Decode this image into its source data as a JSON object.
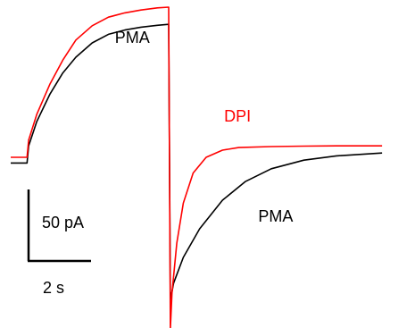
{
  "chart_data": {
    "type": "line",
    "title": "",
    "xlabel": "",
    "ylabel": "",
    "grid": false,
    "legend": "inline labels next to traces",
    "units": {
      "time": "s",
      "current": "pA"
    },
    "scale_bar": {
      "current_label": "50 pA",
      "time_label": "2 s",
      "current_value": 50,
      "time_value": 2
    },
    "xlim": [
      0,
      11.5
    ],
    "ylim": [
      -120,
      115
    ],
    "series": [
      {
        "name": "DPI",
        "color": "#ff0000",
        "points": [
          [
            0.0,
            0
          ],
          [
            0.35,
            0
          ],
          [
            0.5,
            0
          ],
          [
            0.55,
            12
          ],
          [
            0.8,
            30
          ],
          [
            1.2,
            51
          ],
          [
            1.6,
            68
          ],
          [
            2.0,
            82
          ],
          [
            2.5,
            92
          ],
          [
            3.0,
            98
          ],
          [
            3.5,
            101
          ],
          [
            4.0,
            103
          ],
          [
            4.5,
            104.5
          ],
          [
            4.85,
            105
          ],
          [
            4.9,
            -120
          ],
          [
            4.95,
            -95
          ],
          [
            5.1,
            -60
          ],
          [
            5.3,
            -32
          ],
          [
            5.6,
            -11
          ],
          [
            6.0,
            0
          ],
          [
            6.5,
            5
          ],
          [
            7.0,
            6.8
          ],
          [
            8.0,
            7.5
          ],
          [
            9.0,
            7.8
          ],
          [
            10.0,
            8.0
          ],
          [
            11.4,
            8.0
          ]
        ]
      },
      {
        "name": "PMA",
        "color": "#000000",
        "points": [
          [
            0.0,
            -4
          ],
          [
            0.5,
            -4
          ],
          [
            0.55,
            8
          ],
          [
            0.8,
            25
          ],
          [
            1.2,
            44
          ],
          [
            1.6,
            59
          ],
          [
            2.0,
            70
          ],
          [
            2.5,
            80
          ],
          [
            3.0,
            86
          ],
          [
            3.5,
            89
          ],
          [
            4.0,
            91
          ],
          [
            4.5,
            92.3
          ],
          [
            4.85,
            93
          ],
          [
            4.9,
            -100
          ],
          [
            5.0,
            -88
          ],
          [
            5.3,
            -70
          ],
          [
            5.8,
            -50
          ],
          [
            6.5,
            -30
          ],
          [
            7.2,
            -17
          ],
          [
            8.0,
            -8
          ],
          [
            9.0,
            -2
          ],
          [
            10.0,
            1
          ],
          [
            11.4,
            3
          ]
        ]
      }
    ],
    "annotations": [
      {
        "text": "DPI",
        "color": "#ff0000",
        "at_time": 5.0,
        "at_current": 110
      },
      {
        "text": "PMA",
        "color": "#000000",
        "at_time": 3.2,
        "at_current": 80
      },
      {
        "text": "DPI",
        "color": "#ff0000",
        "at_time": 6.55,
        "at_current": 25
      },
      {
        "text": "PMA",
        "color": "#000000",
        "at_time": 7.6,
        "at_current": -45
      }
    ]
  }
}
